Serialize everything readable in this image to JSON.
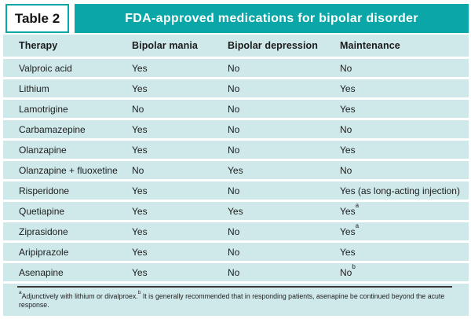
{
  "table_label": "Table 2",
  "title": "FDA-approved medications for bipolar disorder",
  "colors": {
    "teal_accent": "#0aa6a8",
    "row_background": "#cfe9ea",
    "title_text": "#ffffff",
    "body_text": "#1d1d1d"
  },
  "chart_data": {
    "type": "table",
    "title": "FDA-approved medications for bipolar disorder",
    "columns": [
      "Therapy",
      "Bipolar mania",
      "Bipolar depression",
      "Maintenance"
    ],
    "rows": [
      {
        "therapy": "Valproic acid",
        "mania": "Yes",
        "depression": "No",
        "maintenance": "No",
        "maintenance_sup": ""
      },
      {
        "therapy": "Lithium",
        "mania": "Yes",
        "depression": "No",
        "maintenance": "Yes",
        "maintenance_sup": ""
      },
      {
        "therapy": "Lamotrigine",
        "mania": "No",
        "depression": "No",
        "maintenance": "Yes",
        "maintenance_sup": ""
      },
      {
        "therapy": "Carbamazepine",
        "mania": "Yes",
        "depression": "No",
        "maintenance": "No",
        "maintenance_sup": ""
      },
      {
        "therapy": "Olanzapine",
        "mania": "Yes",
        "depression": "No",
        "maintenance": "Yes",
        "maintenance_sup": ""
      },
      {
        "therapy": "Olanzapine + fluoxetine",
        "mania": "No",
        "depression": "Yes",
        "maintenance": "No",
        "maintenance_sup": ""
      },
      {
        "therapy": "Risperidone",
        "mania": "Yes",
        "depression": "No",
        "maintenance": "Yes (as long-acting injection)",
        "maintenance_sup": ""
      },
      {
        "therapy": "Quetiapine",
        "mania": "Yes",
        "depression": "Yes",
        "maintenance": "Yes",
        "maintenance_sup": "a"
      },
      {
        "therapy": "Ziprasidone",
        "mania": "Yes",
        "depression": "No",
        "maintenance": "Yes",
        "maintenance_sup": "a"
      },
      {
        "therapy": "Aripiprazole",
        "mania": "Yes",
        "depression": "No",
        "maintenance": "Yes",
        "maintenance_sup": ""
      },
      {
        "therapy": "Asenapine",
        "mania": "Yes",
        "depression": "No",
        "maintenance": "No",
        "maintenance_sup": "b"
      }
    ],
    "footnote": {
      "sup_a": "a",
      "text_a": "Adjunctively with lithium or divalproex.",
      "sup_b": "b",
      "text_b": " It is generally recommended that in responding patients, asenapine be continued beyond the acute response."
    }
  }
}
